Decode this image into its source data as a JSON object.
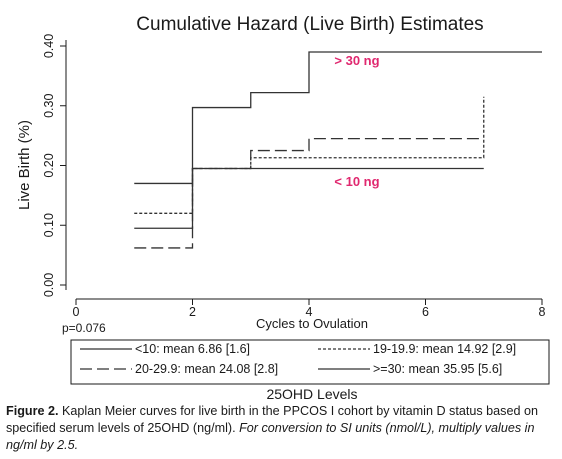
{
  "chart_data": {
    "type": "line",
    "step": true,
    "title": "Cumulative Hazard (Live Birth) Estimates",
    "xlabel": "Cycles to Ovulation",
    "ylabel": "Live Birth (%)",
    "xlim": [
      0,
      8
    ],
    "ylim": [
      0,
      0.4
    ],
    "xticks": [
      0,
      2,
      4,
      6,
      8
    ],
    "xtick_labels": [
      "0",
      "2",
      "4",
      "6",
      "8"
    ],
    "yticks": [
      0,
      0.1,
      0.2,
      0.3,
      0.4
    ],
    "ytick_labels": [
      "0.00",
      "0.10",
      "0.20",
      "0.30",
      "0.40"
    ],
    "series": [
      {
        "name": "<10: mean 6.86 [1.6]",
        "style": "solid",
        "x": [
          1,
          2,
          7
        ],
        "y": [
          0.095,
          0.195,
          0.195
        ]
      },
      {
        "name": "19-19.9: mean 14.92 [2.9]",
        "style": "dotted",
        "x": [
          1,
          2,
          3,
          7,
          7
        ],
        "y": [
          0.12,
          0.195,
          0.213,
          0.213,
          0.315
        ]
      },
      {
        "name": "20-29.9: mean 24.08 [2.8]",
        "style": "longdash",
        "x": [
          1,
          2,
          3,
          4,
          7
        ],
        "y": [
          0.062,
          0.195,
          0.225,
          0.245,
          0.245
        ]
      },
      {
        "name": ">=30: mean 35.95 [5.6]",
        "style": "solid",
        "x": [
          1,
          2,
          3,
          4,
          8
        ],
        "y": [
          0.17,
          0.297,
          0.322,
          0.39,
          0.39
        ]
      }
    ],
    "annotations": [
      {
        "text": "> 30 ng",
        "x": 4.75,
        "y": 0.37,
        "color": "#e0286f"
      },
      {
        "text": "< 10 ng",
        "x": 4.75,
        "y": 0.175,
        "color": "#e0286f"
      },
      {
        "text": "p=0.076"
      }
    ],
    "legend_title": "25OHD Levels",
    "legend_position": "bottom",
    "grid": false
  },
  "caption": {
    "label": "Figure 2.",
    "text": " Kaplan Meier curves for live birth in the PPCOS I cohort by vitamin D status based on specified serum levels of 25OHD (ng/ml). ",
    "italic": "For conversion to SI units (nmol/L), multiply values in ng/ml by 2.5."
  }
}
